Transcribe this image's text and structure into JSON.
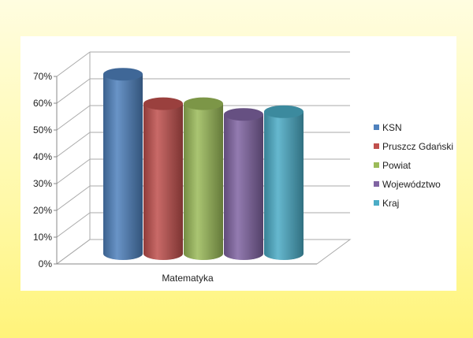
{
  "chart_data": {
    "type": "bar",
    "style": "3d-cylinder",
    "categories": [
      "Matematyka"
    ],
    "series": [
      {
        "name": "KSN",
        "values": [
          67
        ],
        "color": "#4F81BD"
      },
      {
        "name": "Pruszcz Gdański",
        "values": [
          56
        ],
        "color": "#C0504D"
      },
      {
        "name": "Powiat",
        "values": [
          56
        ],
        "color": "#9BBB59"
      },
      {
        "name": "Województwo",
        "values": [
          52
        ],
        "color": "#8064A2"
      },
      {
        "name": "Kraj",
        "values": [
          53
        ],
        "color": "#4BACC6"
      }
    ],
    "yticks": [
      "0%",
      "10%",
      "20%",
      "30%",
      "40%",
      "50%",
      "60%",
      "70%"
    ],
    "ylim": [
      0,
      70
    ],
    "unit": "%",
    "grid": true,
    "legend": "right",
    "title": "",
    "xlabel": "",
    "ylabel": ""
  }
}
